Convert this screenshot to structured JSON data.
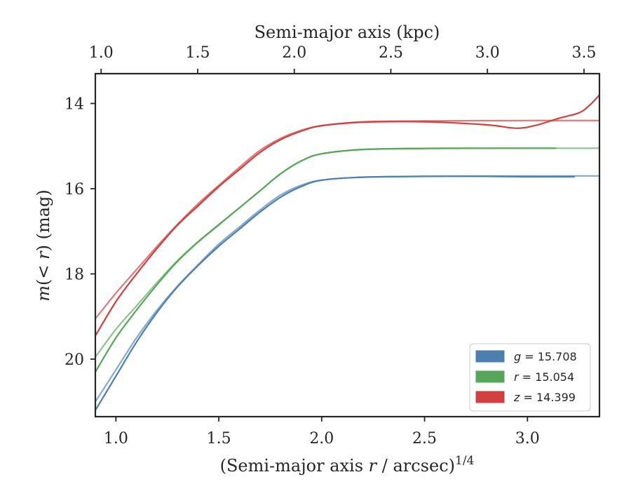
{
  "chart_data": {
    "type": "line",
    "xlabel_parts": [
      "(Semi-major axis ",
      "r",
      " / arcsec)",
      "1/4"
    ],
    "ylabel_parts": [
      "m",
      "(< ",
      "r",
      ") (mag)"
    ],
    "top_xlabel": "Semi-major axis (kpc)",
    "xlim": [
      0.9,
      3.35
    ],
    "ylim": [
      21.35,
      13.3
    ],
    "y_inverted": true,
    "top_xlim": [
      0.97,
      3.58
    ],
    "xticks": [
      "1.0",
      "1.5",
      "2.0",
      "2.5",
      "3.0"
    ],
    "xtick_values": [
      1.0,
      1.5,
      2.0,
      2.5,
      3.0
    ],
    "yticks": [
      "14",
      "16",
      "18",
      "20"
    ],
    "ytick_values": [
      14,
      16,
      18,
      20
    ],
    "top_xticks": [
      "1.0",
      "1.5",
      "2.0",
      "2.5",
      "3.0",
      "3.5"
    ],
    "top_xtick_values": [
      1.0,
      1.5,
      2.0,
      2.5,
      3.0,
      3.5
    ],
    "grid": false,
    "legend_position": "lower-right",
    "series": [
      {
        "band": "g",
        "name": "g = 15.708",
        "legend_var": "g",
        "legend_value": "= 15.708",
        "color": "#4c7fb0",
        "model_color": "#86a9cc",
        "data": [
          [
            0.9,
            21.2
          ],
          [
            1.0,
            20.4
          ],
          [
            1.1,
            19.6
          ],
          [
            1.2,
            18.9
          ],
          [
            1.3,
            18.3
          ],
          [
            1.4,
            17.8
          ],
          [
            1.5,
            17.35
          ],
          [
            1.6,
            16.95
          ],
          [
            1.7,
            16.55
          ],
          [
            1.8,
            16.2
          ],
          [
            1.9,
            15.95
          ],
          [
            2.0,
            15.8
          ],
          [
            2.2,
            15.73
          ],
          [
            2.5,
            15.71
          ],
          [
            2.8,
            15.71
          ],
          [
            3.0,
            15.72
          ],
          [
            3.23,
            15.72
          ]
        ],
        "model": [
          [
            0.9,
            21.0
          ],
          [
            1.0,
            20.25
          ],
          [
            1.1,
            19.5
          ],
          [
            1.2,
            18.85
          ],
          [
            1.3,
            18.28
          ],
          [
            1.4,
            17.78
          ],
          [
            1.5,
            17.3
          ],
          [
            1.6,
            16.9
          ],
          [
            1.7,
            16.5
          ],
          [
            1.8,
            16.15
          ],
          [
            1.9,
            15.92
          ],
          [
            2.0,
            15.8
          ],
          [
            2.2,
            15.73
          ],
          [
            2.5,
            15.71
          ],
          [
            3.0,
            15.7
          ],
          [
            3.35,
            15.7
          ]
        ]
      },
      {
        "band": "r",
        "name": "r = 15.054",
        "legend_var": "r",
        "legend_value": "= 15.054",
        "color": "#58a55c",
        "model_color": "#8fc48f",
        "data": [
          [
            0.9,
            20.3
          ],
          [
            1.0,
            19.5
          ],
          [
            1.1,
            18.85
          ],
          [
            1.2,
            18.25
          ],
          [
            1.3,
            17.7
          ],
          [
            1.4,
            17.25
          ],
          [
            1.5,
            16.85
          ],
          [
            1.6,
            16.45
          ],
          [
            1.7,
            16.05
          ],
          [
            1.8,
            15.65
          ],
          [
            1.9,
            15.35
          ],
          [
            2.0,
            15.18
          ],
          [
            2.2,
            15.08
          ],
          [
            2.5,
            15.055
          ],
          [
            2.8,
            15.05
          ],
          [
            3.0,
            15.05
          ],
          [
            3.14,
            15.05
          ]
        ],
        "model": [
          [
            0.9,
            19.95
          ],
          [
            1.0,
            19.3
          ],
          [
            1.1,
            18.75
          ],
          [
            1.2,
            18.2
          ],
          [
            1.3,
            17.68
          ],
          [
            1.4,
            17.24
          ],
          [
            1.5,
            16.84
          ],
          [
            1.6,
            16.45
          ],
          [
            1.7,
            16.05
          ],
          [
            1.8,
            15.65
          ],
          [
            1.9,
            15.35
          ],
          [
            2.0,
            15.18
          ],
          [
            2.2,
            15.08
          ],
          [
            2.5,
            15.055
          ],
          [
            3.0,
            15.05
          ],
          [
            3.35,
            15.05
          ]
        ]
      },
      {
        "band": "z",
        "name": "z = 14.399",
        "legend_var": "z",
        "legend_value": "= 14.399",
        "color": "#d14040",
        "model_color": "#e0797a",
        "data": [
          [
            0.9,
            19.45
          ],
          [
            1.0,
            18.65
          ],
          [
            1.1,
            18.0
          ],
          [
            1.2,
            17.4
          ],
          [
            1.3,
            16.85
          ],
          [
            1.4,
            16.4
          ],
          [
            1.5,
            15.95
          ],
          [
            1.6,
            15.55
          ],
          [
            1.7,
            15.15
          ],
          [
            1.8,
            14.85
          ],
          [
            1.9,
            14.65
          ],
          [
            2.0,
            14.52
          ],
          [
            2.2,
            14.44
          ],
          [
            2.5,
            14.43
          ],
          [
            2.8,
            14.5
          ],
          [
            2.95,
            14.58
          ],
          [
            3.05,
            14.5
          ],
          [
            3.15,
            14.35
          ],
          [
            3.25,
            14.22
          ],
          [
            3.3,
            14.05
          ],
          [
            3.35,
            13.8
          ]
        ],
        "model": [
          [
            0.9,
            19.05
          ],
          [
            1.0,
            18.45
          ],
          [
            1.1,
            17.9
          ],
          [
            1.2,
            17.35
          ],
          [
            1.3,
            16.83
          ],
          [
            1.4,
            16.35
          ],
          [
            1.5,
            15.92
          ],
          [
            1.6,
            15.5
          ],
          [
            1.7,
            15.1
          ],
          [
            1.8,
            14.82
          ],
          [
            1.9,
            14.63
          ],
          [
            2.0,
            14.52
          ],
          [
            2.2,
            14.43
          ],
          [
            2.5,
            14.41
          ],
          [
            3.0,
            14.4
          ],
          [
            3.35,
            14.4
          ]
        ]
      }
    ]
  }
}
